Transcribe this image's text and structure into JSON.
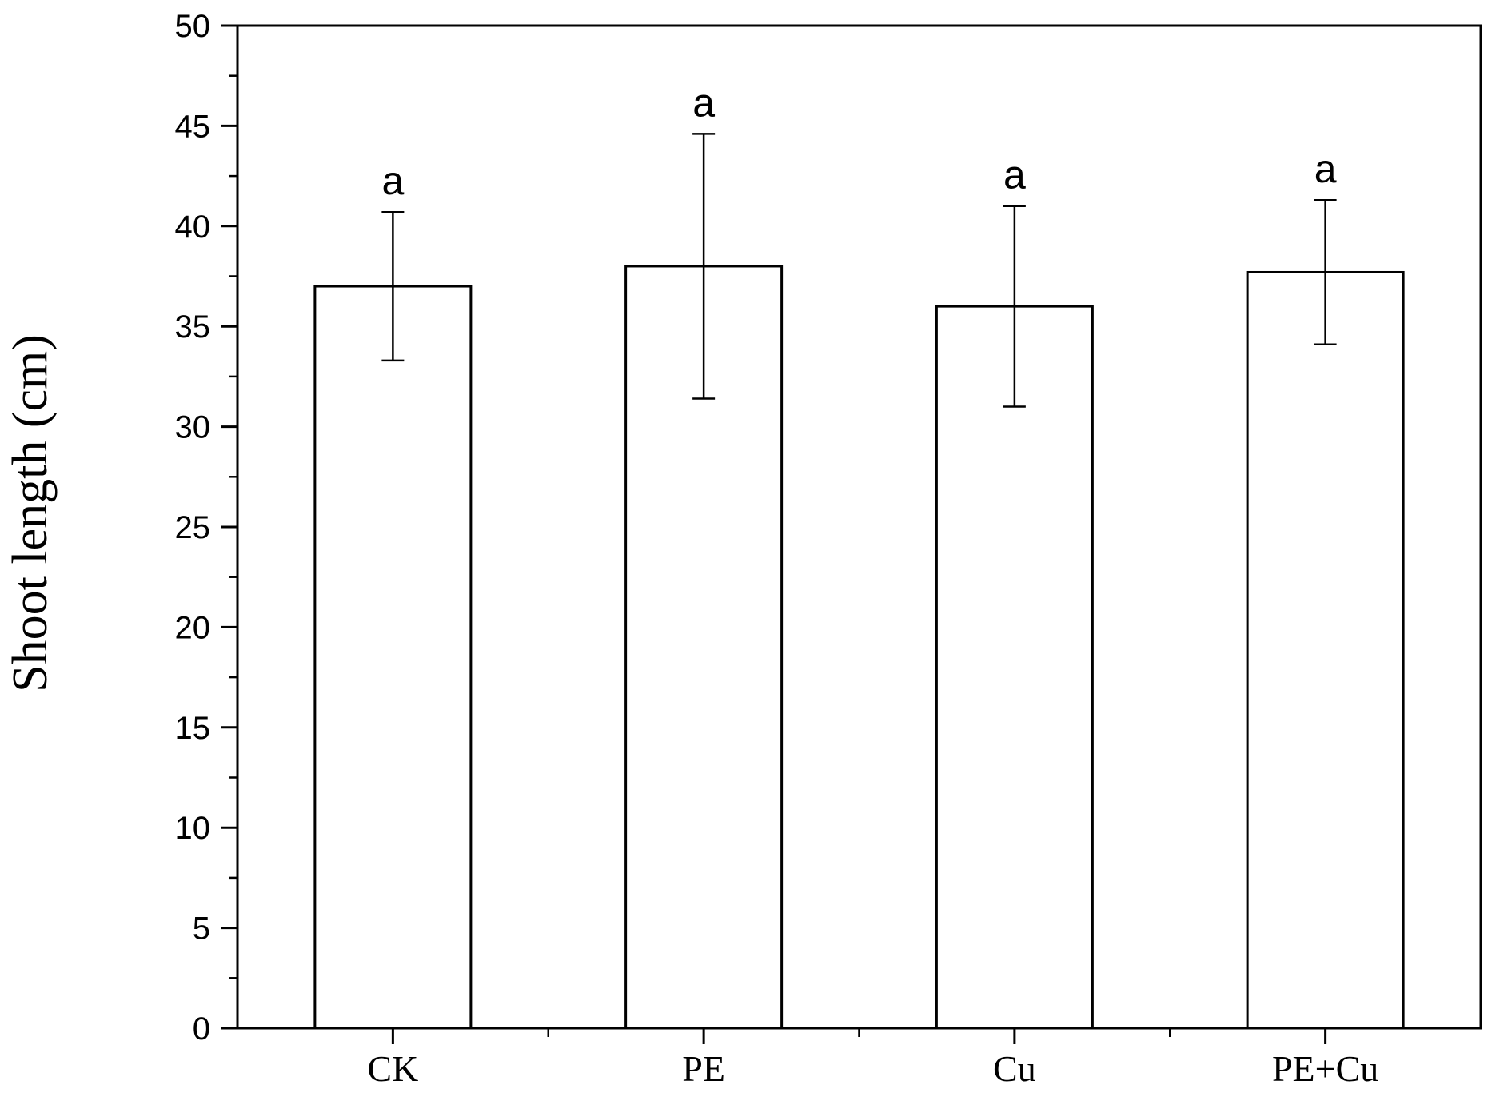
{
  "chart_data": {
    "type": "bar",
    "title": "",
    "xlabel": "",
    "ylabel": "Shoot length (cm)",
    "ylim": [
      0,
      50
    ],
    "yticks": [
      0,
      5,
      10,
      15,
      20,
      25,
      30,
      35,
      40,
      45,
      50
    ],
    "ytick_labels": [
      "0",
      "5",
      "10",
      "15",
      "20",
      "25",
      "30",
      "35",
      "40",
      "45",
      "50"
    ],
    "categories": [
      "CK",
      "PE",
      "Cu",
      "PE+Cu"
    ],
    "values": [
      37.0,
      38.0,
      36.0,
      37.7
    ],
    "error": [
      3.7,
      6.6,
      5.0,
      3.6
    ],
    "significance_labels": [
      "a",
      "a",
      "a",
      "a"
    ],
    "grid": false,
    "bar_fill": "#ffffff",
    "bar_edge": "#000000"
  }
}
